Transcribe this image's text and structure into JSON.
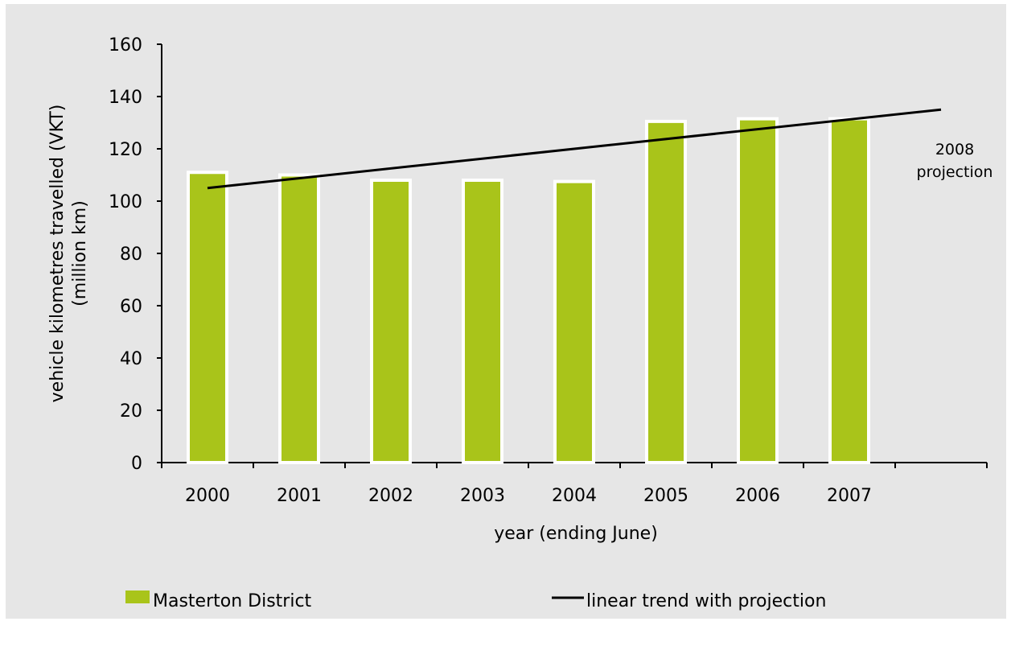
{
  "chart_data": {
    "type": "bar",
    "categories": [
      "2000",
      "2001",
      "2002",
      "2003",
      "2004",
      "2005",
      "2006",
      "2007"
    ],
    "series": [
      {
        "name": "Masterton District",
        "color": "#a9c41a",
        "values": [
          111,
          110,
          108,
          108,
          107.5,
          130.5,
          131.5,
          131.5
        ]
      }
    ],
    "trend": {
      "name": "linear trend with projection",
      "color": "#000000",
      "x_start": "2000",
      "y_start": 105,
      "x_end": "2008",
      "y_end": 135,
      "annotation": [
        "2008",
        "projection"
      ]
    },
    "xlabel": "year (ending June)",
    "ylabel": [
      "vehicle kilometres travelled (VKT)",
      "(million km)"
    ],
    "ylim": [
      0,
      160
    ],
    "yticks": [
      0,
      20,
      40,
      60,
      80,
      100,
      120,
      140,
      160
    ],
    "grid": false,
    "legend_position": "bottom",
    "background_color": "#e6e6e6",
    "bar_outline_color": "#ffffff"
  }
}
